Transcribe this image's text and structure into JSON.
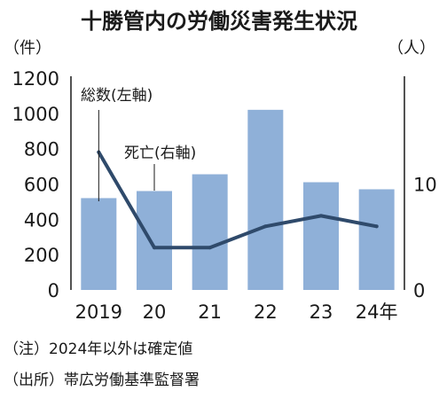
{
  "chart_data": {
    "type": "bar",
    "title": "十勝管内の労働災害発生状況",
    "left_axis_unit": "（件）",
    "right_axis_unit": "（人）",
    "categories": [
      "2019",
      "20",
      "21",
      "22",
      "23",
      "24年"
    ],
    "ylim_left": [
      0,
      1200
    ],
    "left_ticks": [
      "0",
      "200",
      "400",
      "600",
      "800",
      "1000",
      "1200"
    ],
    "ylim_right": [
      0,
      20
    ],
    "right_ticks": [
      "0",
      "10"
    ],
    "grid": false,
    "series": [
      {
        "name": "総数(左軸)",
        "kind": "bar",
        "axis": "left",
        "color": "#8fb0d8",
        "values": [
          520,
          560,
          655,
          1020,
          610,
          570
        ]
      },
      {
        "name": "死亡(右軸)",
        "kind": "line",
        "axis": "right",
        "color": "#2f4a6b",
        "values": [
          13,
          4,
          4,
          6,
          7,
          6
        ]
      }
    ]
  },
  "notes": [
    "（注）2024年以外は確定値",
    "（出所）帯広労働基準監督署"
  ]
}
